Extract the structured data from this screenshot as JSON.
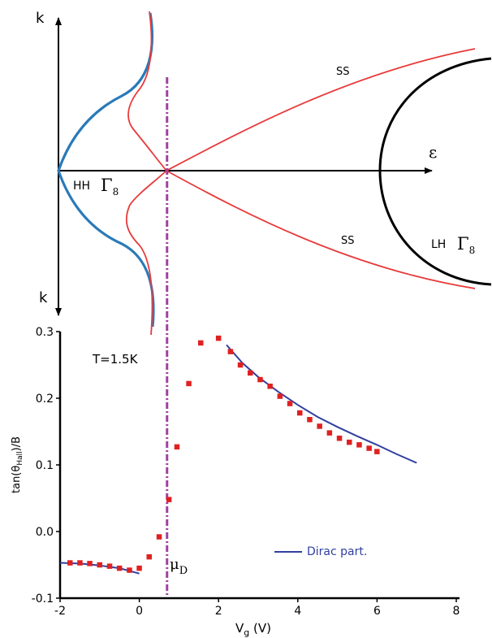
{
  "top_panel": {
    "k_top_label": "k",
    "k_bottom_label": "k",
    "energy_label": "ε",
    "hh_label": "HH",
    "lh_label": "LH",
    "gamma_symbol": "Γ",
    "gamma_sub": "8",
    "ss_upper_label": "SS",
    "ss_lower_label": "SS",
    "colors": {
      "hh_band": "#2a7ab8",
      "ss_band": "#e83a3a",
      "lh_band": "#000000",
      "mu_line": "#a040a0"
    }
  },
  "chart_data": {
    "type": "scatter",
    "xlabel": "V",
    "xlabel_sub": "g",
    "xlabel_unit": " (V)",
    "ylabel_main": "tan(θ",
    "ylabel_sub": "Hall",
    "ylabel_end": ")/B",
    "xlim": [
      -2,
      8.4
    ],
    "ylim": [
      -0.1,
      0.3
    ],
    "x_ticks": [
      -2,
      0,
      2,
      4,
      6,
      8
    ],
    "x_tick_labels": [
      "-2",
      "0",
      "2",
      "4",
      "6",
      "8"
    ],
    "y_ticks": [
      -0.1,
      0.0,
      0.1,
      0.2,
      0.3
    ],
    "y_tick_labels": [
      "-0.1",
      "0.0",
      "0.1",
      "0.2",
      "0.3"
    ],
    "temperature_label": "T=1.5K",
    "mu_label": "μ",
    "mu_sub": "D",
    "mu_d_x": 0.7,
    "series": [
      {
        "type": "scatter",
        "color": "#e02020",
        "x": [
          -1.75,
          -1.5,
          -1.25,
          -1.0,
          -0.75,
          -0.5,
          -0.25,
          0.0,
          0.25,
          0.5,
          0.75,
          0.95,
          1.25,
          1.55,
          2.0,
          2.3,
          2.55,
          2.8,
          3.05,
          3.3,
          3.55,
          3.8,
          4.05,
          4.3,
          4.55,
          4.8,
          5.05,
          5.3,
          5.55,
          5.8,
          6.0
        ],
        "y": [
          -0.047,
          -0.047,
          -0.048,
          -0.05,
          -0.052,
          -0.055,
          -0.058,
          -0.055,
          -0.038,
          -0.008,
          0.048,
          0.127,
          0.222,
          0.283,
          0.29,
          0.27,
          0.25,
          0.238,
          0.228,
          0.218,
          0.203,
          0.192,
          0.178,
          0.168,
          0.158,
          0.148,
          0.14,
          0.134,
          0.13,
          0.125,
          0.12
        ]
      },
      {
        "type": "line",
        "name": "Dirac part.",
        "color": "#3040a0",
        "segments": [
          {
            "x": [
              -2.0,
              -1.5,
              -1.0,
              -0.5,
              0.0
            ],
            "y": [
              -0.047,
              -0.048,
              -0.051,
              -0.055,
              -0.063
            ]
          },
          {
            "x": [
              2.2,
              2.6,
              3.0,
              3.5,
              4.0,
              4.5,
              5.0,
              5.5,
              6.0,
              6.5,
              7.0
            ],
            "y": [
              0.28,
              0.253,
              0.232,
              0.21,
              0.19,
              0.172,
              0.157,
              0.143,
              0.13,
              0.116,
              0.103
            ]
          }
        ]
      }
    ],
    "legend": {
      "placement": "bottom-right"
    }
  }
}
